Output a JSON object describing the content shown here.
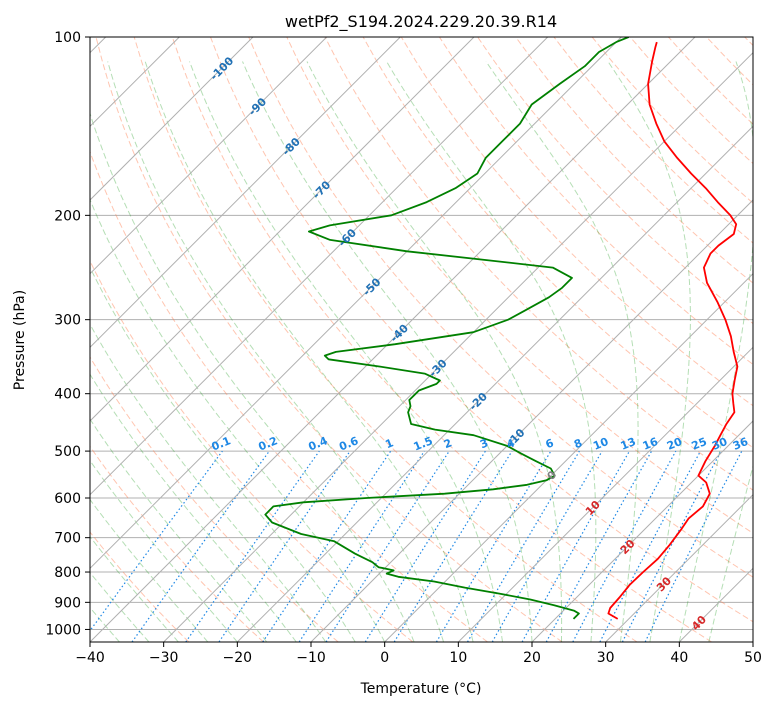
{
  "chart_data": {
    "type": "line",
    "title": "wetPf2_S194.2024.229.20.39.R14",
    "xlabel": "Temperature (°C)",
    "ylabel": "Pressure (hPa)",
    "x_ticks": [
      "−40",
      "−30",
      "−20",
      "−10",
      "0",
      "10",
      "20",
      "30",
      "40",
      "50"
    ],
    "y_ticks": [
      "100",
      "200",
      "300",
      "400",
      "500",
      "600",
      "700",
      "800",
      "900",
      "1000"
    ],
    "xlim": [
      -40,
      50
    ],
    "ylim": [
      1050,
      100
    ],
    "y_scale": "log",
    "skew": true,
    "grid": true,
    "colors": {
      "temperature": "#ff0000",
      "dewpoint": "#008000",
      "dry_adiabat": "#ff7f50",
      "moist_adiabat": "#2ca02c",
      "mixing_ratio": "#1e88e5",
      "isotherm_grid": "#b0b0b0"
    },
    "series": [
      {
        "key": "temperature",
        "points": [
          [
            28.5,
            960
          ],
          [
            26.5,
            940
          ],
          [
            26,
            920
          ],
          [
            25.8,
            880
          ],
          [
            25.5,
            840
          ],
          [
            25.6,
            800
          ],
          [
            25.8,
            760
          ],
          [
            25.5,
            720
          ],
          [
            25,
            680
          ],
          [
            24.5,
            650
          ],
          [
            24.8,
            620
          ],
          [
            24,
            590
          ],
          [
            22,
            565
          ],
          [
            20,
            550
          ],
          [
            19,
            520
          ],
          [
            18.2,
            490
          ],
          [
            17.5,
            470
          ],
          [
            16.8,
            450
          ],
          [
            16.3,
            430
          ],
          [
            14.9,
            415
          ],
          [
            13.5,
            400
          ],
          [
            12,
            380
          ],
          [
            10.5,
            360
          ],
          [
            8,
            340
          ],
          [
            5.5,
            320
          ],
          [
            2.5,
            300
          ],
          [
            -1,
            280
          ],
          [
            -5,
            260
          ],
          [
            -7.5,
            245
          ],
          [
            -8.5,
            232
          ],
          [
            -8.5,
            225
          ],
          [
            -8,
            215
          ],
          [
            -9,
            207
          ],
          [
            -11,
            200
          ],
          [
            -14.5,
            190
          ],
          [
            -18,
            180
          ],
          [
            -22,
            170
          ],
          [
            -26,
            160
          ],
          [
            -30,
            150
          ],
          [
            -33.5,
            140
          ],
          [
            -37,
            130
          ],
          [
            -40,
            120
          ],
          [
            -42.5,
            110
          ],
          [
            -44,
            104
          ],
          [
            -44.5,
            102
          ]
        ]
      },
      {
        "key": "dewpoint",
        "points": [
          [
            22.5,
            960
          ],
          [
            22.5,
            940
          ],
          [
            21.5,
            930
          ],
          [
            18,
            910
          ],
          [
            14,
            890
          ],
          [
            9,
            870
          ],
          [
            3.5,
            850
          ],
          [
            -1.5,
            830
          ],
          [
            -7,
            815
          ],
          [
            -9,
            805
          ],
          [
            -8.5,
            795
          ],
          [
            -11,
            785
          ],
          [
            -12.5,
            770
          ],
          [
            -16,
            745
          ],
          [
            -20.5,
            710
          ],
          [
            -26,
            690
          ],
          [
            -31.5,
            660
          ],
          [
            -33.5,
            640
          ],
          [
            -33.5,
            620
          ],
          [
            -30,
            610
          ],
          [
            -22,
            600
          ],
          [
            -12,
            590
          ],
          [
            -6,
            580
          ],
          [
            -2,
            570
          ],
          [
            0,
            560
          ],
          [
            0.5,
            550
          ],
          [
            -1,
            535
          ],
          [
            -4,
            520
          ],
          [
            -7,
            505
          ],
          [
            -10,
            490
          ],
          [
            -16,
            470
          ],
          [
            -22,
            460
          ],
          [
            -26,
            450
          ],
          [
            -28,
            430
          ],
          [
            -28.5,
            420
          ],
          [
            -29.5,
            410
          ],
          [
            -29.5,
            400
          ],
          [
            -29.5,
            395
          ],
          [
            -28,
            385
          ],
          [
            -28,
            380
          ],
          [
            -31,
            370
          ],
          [
            -38,
            360
          ],
          [
            -46,
            350
          ],
          [
            -47,
            345
          ],
          [
            -46,
            340
          ],
          [
            -39,
            330
          ],
          [
            -30,
            315
          ],
          [
            -27,
            300
          ],
          [
            -26,
            290
          ],
          [
            -24.5,
            275
          ],
          [
            -24,
            265
          ],
          [
            -24,
            255
          ],
          [
            -28,
            245
          ],
          [
            -38,
            238
          ],
          [
            -50,
            230
          ],
          [
            -62,
            220
          ],
          [
            -66,
            213
          ],
          [
            -64,
            208
          ],
          [
            -57,
            200
          ],
          [
            -54,
            190
          ],
          [
            -52,
            180
          ],
          [
            -51,
            170
          ],
          [
            -52,
            160
          ],
          [
            -52,
            150
          ],
          [
            -52,
            140
          ],
          [
            -53,
            130
          ],
          [
            -52,
            120
          ],
          [
            -51,
            112
          ],
          [
            -51,
            106
          ],
          [
            -50,
            102
          ],
          [
            -49,
            100
          ]
        ]
      }
    ],
    "temperature_labels": [
      {
        "t": "-100",
        "p": 113,
        "c": "#2171b5"
      },
      {
        "t": "-90",
        "p": 131,
        "c": "#2171b5"
      },
      {
        "t": "-80",
        "p": 153,
        "c": "#2171b5"
      },
      {
        "t": "-70",
        "p": 181,
        "c": "#2171b5"
      },
      {
        "t": "-60",
        "p": 218,
        "c": "#2171b5"
      },
      {
        "t": "-50",
        "p": 264,
        "c": "#2171b5"
      },
      {
        "t": "-40",
        "p": 316,
        "c": "#2171b5"
      },
      {
        "t": "-30",
        "p": 362,
        "c": "#2171b5"
      },
      {
        "t": "-20",
        "p": 412,
        "c": "#2171b5"
      },
      {
        "t": "-10",
        "p": 474,
        "c": "#2171b5"
      },
      {
        "t": "0",
        "p": 549,
        "c": "#7f7f7f"
      },
      {
        "t": "10",
        "p": 623,
        "c": "#d62728"
      },
      {
        "t": "20",
        "p": 725,
        "c": "#d62728"
      },
      {
        "t": "30",
        "p": 838,
        "c": "#d62728"
      },
      {
        "t": "40",
        "p": 974,
        "c": "#d62728"
      }
    ],
    "mixing_ratios": [
      "0.1",
      "0.2",
      "0.4",
      "0.6",
      "1",
      "1.5",
      "2",
      "3",
      "4",
      "6",
      "8",
      "10",
      "13",
      "16",
      "20",
      "25",
      "30",
      "36"
    ]
  }
}
